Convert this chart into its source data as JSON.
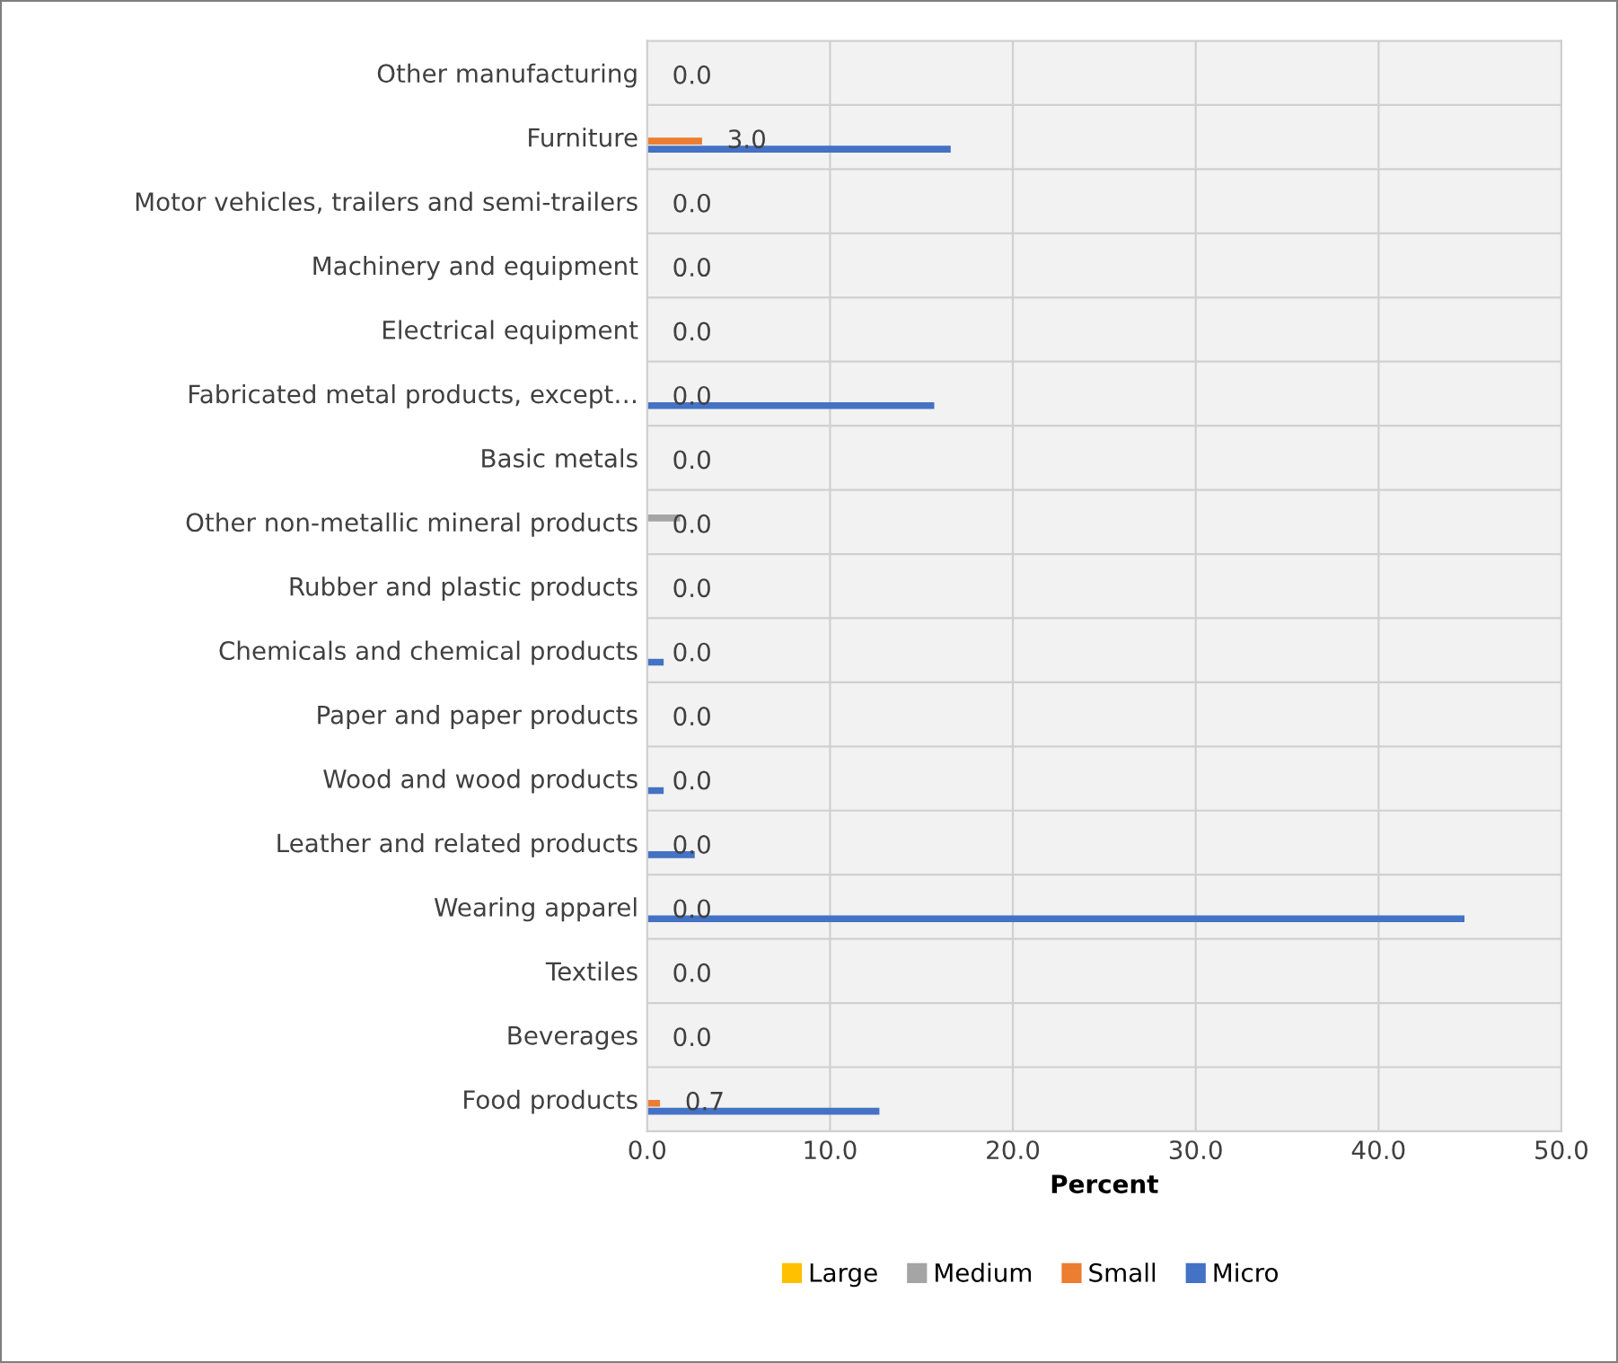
{
  "chart_data": {
    "type": "bar",
    "orientation": "horizontal",
    "xlabel": "Percent",
    "categories": [
      "Other manufacturing",
      "Furniture",
      "Motor vehicles, trailers and semi-trailers",
      "Machinery and equipment",
      "Electrical equipment",
      "Fabricated metal products, except…",
      "Basic metals",
      "Other non-metallic mineral products",
      "Rubber and plastic products",
      "Chemicals and chemical products",
      "Paper and paper products",
      "Wood and wood products",
      "Leather and related products",
      "Wearing apparel",
      "Textiles",
      "Beverages",
      "Food products"
    ],
    "series": [
      {
        "name": "Large",
        "color": "#ffc000",
        "values": [
          0,
          0,
          0,
          0,
          0,
          0,
          0,
          0,
          0,
          0,
          0,
          0,
          0,
          0,
          0,
          0,
          0
        ]
      },
      {
        "name": "Medium",
        "color": "#a5a5a5",
        "values": [
          0,
          0,
          0,
          0,
          0,
          0,
          0,
          1.8,
          0,
          0,
          0,
          0,
          0,
          0,
          0,
          0,
          0
        ]
      },
      {
        "name": "Small",
        "color": "#ed7d31",
        "values": [
          0,
          3.0,
          0,
          0,
          0,
          0,
          0,
          0,
          0,
          0,
          0,
          0,
          0,
          0,
          0,
          0,
          0.7
        ],
        "value_labels": [
          "0.0",
          "3.0",
          "0.0",
          "0.0",
          "0.0",
          "0.0",
          "0.0",
          "0.0",
          "0.0",
          "0.0",
          "0.0",
          "0.0",
          "0.0",
          "0.0",
          "0.0",
          "0.0",
          "0.7"
        ]
      },
      {
        "name": "Micro",
        "color": "#4472c4",
        "values": [
          0,
          16.6,
          0,
          0,
          0,
          15.7,
          0,
          0,
          0,
          0.9,
          0,
          0.9,
          2.6,
          44.7,
          0,
          0,
          12.7
        ]
      }
    ],
    "xlim": [
      0,
      50
    ],
    "xticks": [
      {
        "value": 0,
        "label": "0.0"
      },
      {
        "value": 10,
        "label": "10.0"
      },
      {
        "value": 20,
        "label": "20.0"
      },
      {
        "value": 30,
        "label": "30.0"
      },
      {
        "value": 40,
        "label": "40.0"
      },
      {
        "value": 50,
        "label": "50.0"
      }
    ],
    "grid": true,
    "legend": "bottom"
  }
}
